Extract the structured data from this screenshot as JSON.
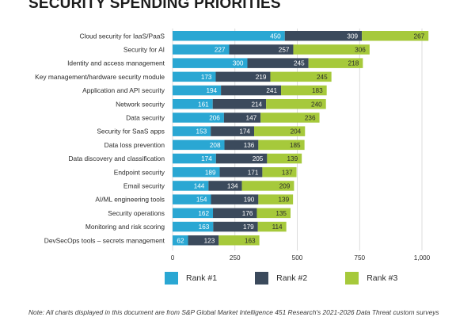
{
  "title": "SECURITY SPENDING PRIORITIES",
  "note": "Note: All charts displayed in this document are from S&P Global Market Intelligence 451 Research's 2021-2026 Data Threat custom surveys",
  "colors": {
    "rank1": "#2aa7d3",
    "rank2": "#3b4a5c",
    "rank3": "#a6c93b",
    "grid": "#d4d4d4"
  },
  "chart_data": {
    "type": "bar",
    "orientation": "horizontal",
    "stacked": true,
    "categories": [
      "Cloud security for IaaS/PaaS",
      "Security for AI",
      "Identity and access management",
      "Key management/hardware security module",
      "Application and API security",
      "Network security",
      "Data security",
      "Security for SaaS apps",
      "Data loss prevention",
      "Data discovery and classification",
      "Endpoint security",
      "Email security",
      "AI/ML engineering tools",
      "Security operations",
      "Monitoring and risk scoring",
      "DevSecOps tools – secrets management"
    ],
    "series": [
      {
        "name": "Rank #1",
        "values": [
          450,
          227,
          300,
          173,
          194,
          161,
          206,
          153,
          208,
          174,
          189,
          144,
          154,
          162,
          163,
          62
        ]
      },
      {
        "name": "Rank #2",
        "values": [
          309,
          257,
          245,
          219,
          241,
          214,
          147,
          174,
          136,
          205,
          171,
          134,
          190,
          176,
          179,
          123
        ]
      },
      {
        "name": "Rank #3",
        "values": [
          267,
          306,
          218,
          245,
          183,
          240,
          236,
          204,
          185,
          139,
          137,
          209,
          139,
          135,
          114,
          163
        ]
      }
    ],
    "xlim": [
      0,
      1000
    ],
    "xticks": [
      0,
      250,
      500,
      750,
      1000
    ],
    "xtick_labels": [
      "0",
      "250",
      "500",
      "750",
      "1,000"
    ],
    "grid": true,
    "legend_position": "bottom"
  }
}
